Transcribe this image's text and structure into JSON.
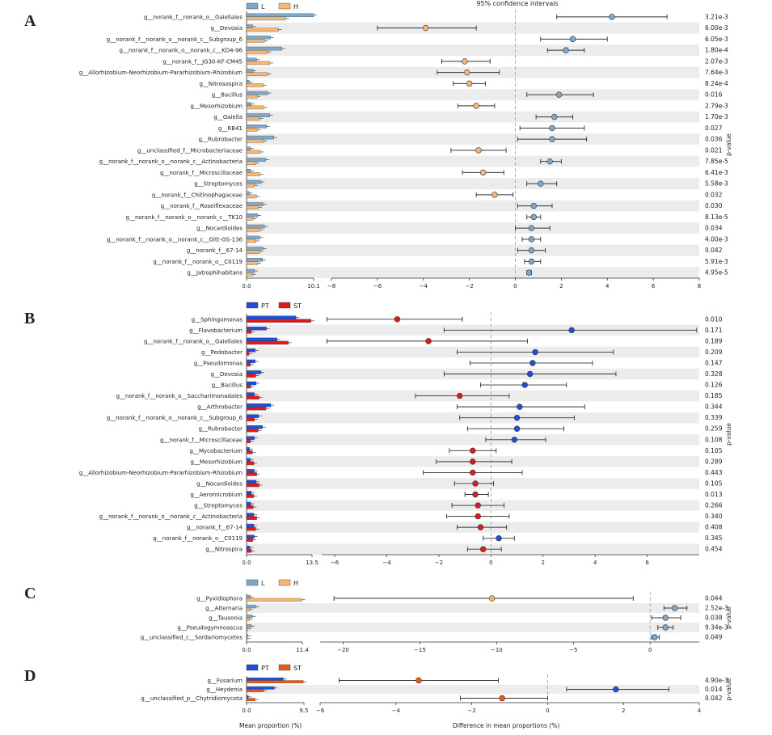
{
  "header": {
    "ci_title": "95% confidence intervals"
  },
  "axis_titles": {
    "left": "Mean proportion (%)",
    "right": "Difference in mean proportions (%)"
  },
  "chart_data": [
    {
      "panel": "A",
      "type": "bar",
      "legend": [
        {
          "name": "L",
          "color": "#7fa7c9"
        },
        {
          "name": "H",
          "color": "#f5b873"
        }
      ],
      "pvalue_label": "p-value",
      "bar_xlim": [
        0,
        10.1
      ],
      "bar_ticks": [
        "0.0",
        "10.1"
      ],
      "diff_xlim": [
        -8,
        8
      ],
      "diff_ticks": [
        -8,
        -6,
        -4,
        -2,
        0,
        2,
        4,
        6,
        8
      ],
      "categories": [
        "g__norank_f__norank_o__Gaiellales",
        "g__Devosia",
        "g__norank_f__norank_o__norank_c__Subgroup_6",
        "g__norank_f__norank_o__norank_c__KD4-96",
        "g__norank_f__JG30-KF-CM45",
        "g__Allorhizobium-Neorhizobium-Pararhizobium-Rhizobium",
        "g__Nitrosospira",
        "g__Bacillus",
        "g__Mesorhizobium",
        "g__Gaiella",
        "g__RB41",
        "g__Rubrobacter",
        "g__unclassified_f__Microbacteriaceae",
        "g__norank_f__norank_o__norank_c__Actinobacteria",
        "g__norank_f__Microscillaceae",
        "g__Streptomyces",
        "g__norank_f__Chitinophagaceae",
        "g__norank_f__Roseiflexaceae",
        "g__norank_f__norank_o__norank_c__TK10",
        "g__Nocardioides",
        "g__norank_f__norank_o__norank_c__Gitt-GS-136",
        "g__norank_f__67-14",
        "g__norank_f__norank_o__C0119",
        "g__Jatrophihabitans"
      ],
      "series": [
        {
          "name": "L",
          "values": [
            10.1,
            0.9,
            3.6,
            5.3,
            1.5,
            1.0,
            0.4,
            3.2,
            0.7,
            3.5,
            3.0,
            4.1,
            0.6,
            2.9,
            0.6,
            2.2,
            0.4,
            2.5,
            1.7,
            2.7,
            2.0,
            2.5,
            2.4,
            1.2
          ]
        },
        {
          "name": "H",
          "values": [
            5.9,
            4.8,
            2.7,
            3.2,
            3.5,
            3.2,
            2.5,
            1.6,
            2.6,
            2.0,
            1.6,
            2.6,
            2.1,
            1.4,
            2.0,
            1.2,
            1.5,
            1.8,
            1.0,
            2.0,
            1.4,
            1.9,
            1.7,
            0.9
          ]
        }
      ],
      "diff": [
        4.2,
        -3.9,
        2.5,
        2.2,
        -2.2,
        -2.1,
        -2.0,
        1.9,
        -1.7,
        1.7,
        1.6,
        1.6,
        -1.6,
        1.5,
        -1.4,
        1.1,
        -0.9,
        0.8,
        0.8,
        0.7,
        0.7,
        0.7,
        0.7,
        0.6
      ],
      "ci_low": [
        1.8,
        -6.0,
        1.1,
        1.4,
        -3.2,
        -3.4,
        -2.7,
        0.5,
        -2.5,
        0.9,
        0.2,
        0.1,
        -2.8,
        1.1,
        -2.3,
        0.5,
        -1.7,
        0.1,
        0.5,
        0.0,
        0.3,
        0.1,
        0.4,
        0.5
      ],
      "ci_high": [
        6.6,
        -1.7,
        4.0,
        3.0,
        -1.1,
        -0.7,
        -1.3,
        3.4,
        -0.9,
        2.5,
        3.0,
        3.1,
        -0.4,
        2.0,
        -0.5,
        1.8,
        -0.1,
        1.6,
        1.1,
        1.5,
        1.1,
        1.3,
        1.1,
        0.7
      ],
      "pvalues": [
        "3.21e-3",
        "6.00e-3",
        "6.05e-3",
        "1.80e-4",
        "2.07e-3",
        "7.64e-3",
        "8.24e-4",
        "0.016",
        "2.79e-3",
        "1.70e-3",
        "0.027",
        "0.036",
        "0.021",
        "7.85e-5",
        "6.41e-3",
        "5.58e-3",
        "0.032",
        "0.030",
        "8.13e-5",
        "0.034",
        "4.00e-3",
        "0.042",
        "5.91e-3",
        "4.95e-5"
      ]
    },
    {
      "panel": "B",
      "type": "bar",
      "legend": [
        {
          "name": "PT",
          "color": "#1f4fd8"
        },
        {
          "name": "ST",
          "color": "#e01a1a"
        }
      ],
      "pvalue_label": "p-value",
      "bar_xlim": [
        0,
        13.5
      ],
      "bar_ticks": [
        "0.0",
        "13.5"
      ],
      "diff_xlim": [
        -6.5,
        8
      ],
      "diff_ticks": [
        -6,
        -4,
        -2,
        0,
        2,
        4,
        6
      ],
      "categories": [
        "g__Sphingomonas",
        "g__Flavobacterium",
        "g__norank_f__norank_o__Gaiellales",
        "g__Pedobacter",
        "g__Pseudomonas",
        "g__Devosia",
        "g__Bacillus",
        "g__norank_f__norank_o__Saccharimonadales",
        "g__Arthrobacter",
        "g__norank_f__norank_o__norank_c__Subgroup_6",
        "g__Rubrobacter",
        "g__norank_f__Microscillaceae",
        "g__Mycobacterium",
        "g__Mesorhizobium",
        "g__Allorhizobium-Neorhizobium-Pararhizobium-Rhizobium",
        "g__Nocardioides",
        "g__Aeromicrobium",
        "g__Streptomyces",
        "g__norank_f__norank_o__norank_c__Actinobacteria",
        "g__norank_f__67-14",
        "g__norank_f__norank_o__C0119",
        "g__Nitrospira"
      ],
      "series": [
        {
          "name": "PT",
          "values": [
            10.2,
            4.1,
            6.3,
            1.8,
            1.8,
            3.0,
            2.0,
            1.6,
            5.0,
            2.5,
            3.3,
            1.6,
            0.6,
            0.8,
            1.6,
            2.0,
            1.0,
            0.9,
            1.5,
            1.5,
            1.6,
            0.7
          ]
        },
        {
          "name": "ST",
          "values": [
            13.3,
            1.0,
            8.6,
            0.5,
            0.8,
            1.9,
            0.9,
            2.6,
            4.0,
            1.6,
            2.4,
            0.8,
            1.2,
            1.5,
            2.1,
            2.6,
            1.5,
            1.4,
            2.1,
            1.9,
            1.3,
            1.0
          ]
        }
      ],
      "diff": [
        -3.6,
        3.1,
        -2.4,
        1.7,
        1.6,
        1.5,
        1.3,
        -1.2,
        1.1,
        1.0,
        1.0,
        0.9,
        -0.7,
        -0.7,
        -0.7,
        -0.6,
        -0.6,
        -0.5,
        -0.5,
        -0.4,
        0.3,
        -0.3
      ],
      "ci_low": [
        -6.3,
        -1.8,
        -6.3,
        -1.3,
        -0.8,
        -1.8,
        -0.4,
        -2.9,
        -1.3,
        -1.2,
        -0.9,
        -0.2,
        -1.6,
        -2.1,
        -2.6,
        -1.4,
        -1.0,
        -1.5,
        -1.7,
        -1.3,
        -0.3,
        -0.9
      ],
      "ci_high": [
        -1.1,
        7.9,
        1.4,
        4.7,
        3.9,
        4.8,
        2.9,
        0.7,
        3.6,
        3.2,
        2.8,
        2.1,
        0.2,
        0.8,
        1.2,
        0.1,
        -0.1,
        0.5,
        0.7,
        0.6,
        0.9,
        0.4
      ],
      "pvalues": [
        "0.010",
        "0.171",
        "0.189",
        "0.209",
        "0.147",
        "0.328",
        "0.126",
        "0.185",
        "0.344",
        "0.339",
        "0.259",
        "0.108",
        "0.105",
        "0.289",
        "0.443",
        "0.105",
        "0.013",
        "0.266",
        "0.340",
        "0.408",
        "0.345",
        "0.454"
      ]
    },
    {
      "panel": "C",
      "type": "bar",
      "legend": [
        {
          "name": "L",
          "color": "#7fa7c9"
        },
        {
          "name": "H",
          "color": "#f5b873"
        }
      ],
      "pvalue_label": "p-value",
      "bar_xlim": [
        0,
        11.4
      ],
      "bar_ticks": [
        "0.0",
        "11.4"
      ],
      "diff_xlim": [
        -21.5,
        3.2
      ],
      "diff_ticks": [
        -20,
        -15,
        -10,
        -5,
        0
      ],
      "categories": [
        "g__Pyxidiophora",
        "g__Alternaria",
        "g__Tausonia",
        "g__Pseudogymnoascus",
        "g__unclassified_c__Sordariomycetes"
      ],
      "series": [
        {
          "name": "L",
          "values": [
            0.8,
            1.9,
            1.2,
            1.0,
            0.25
          ]
        },
        {
          "name": "H",
          "values": [
            11.3,
            0.6,
            0.6,
            0.3,
            0.1
          ]
        }
      ],
      "diff": [
        -10.3,
        1.6,
        1.0,
        1.0,
        0.3
      ],
      "ci_low": [
        -20.6,
        0.9,
        0.1,
        0.5,
        0.1
      ],
      "ci_high": [
        -1.1,
        2.4,
        2.0,
        1.5,
        0.6
      ],
      "pvalues": [
        "0.044",
        "2.52e-3",
        "0.038",
        "9.34e-3",
        "0.049"
      ]
    },
    {
      "panel": "D",
      "type": "bar",
      "legend": [
        {
          "name": "PT",
          "color": "#1f4fd8"
        },
        {
          "name": "ST",
          "color": "#f05a14"
        }
      ],
      "pvalue_label": "p-value",
      "bar_xlim": [
        0,
        9.5
      ],
      "bar_ticks": [
        "0.0",
        "9.5"
      ],
      "diff_xlim": [
        -6,
        4
      ],
      "diff_ticks": [
        -6,
        -4,
        -2,
        0,
        2,
        4
      ],
      "categories": [
        "g__Fusarium",
        "g__Heydenia",
        "g__unclassified_p__Chytridiomycota"
      ],
      "series": [
        {
          "name": "PT",
          "values": [
            6.1,
            4.6,
            0.3
          ]
        },
        {
          "name": "ST",
          "values": [
            9.4,
            2.8,
            1.4
          ]
        }
      ],
      "diff": [
        -3.4,
        1.8,
        -1.2
      ],
      "ci_low": [
        -5.5,
        0.5,
        -2.3
      ],
      "ci_high": [
        -1.3,
        3.2,
        0.0
      ],
      "pvalues": [
        "4.90e-3",
        "0.014",
        "0.042"
      ]
    }
  ]
}
